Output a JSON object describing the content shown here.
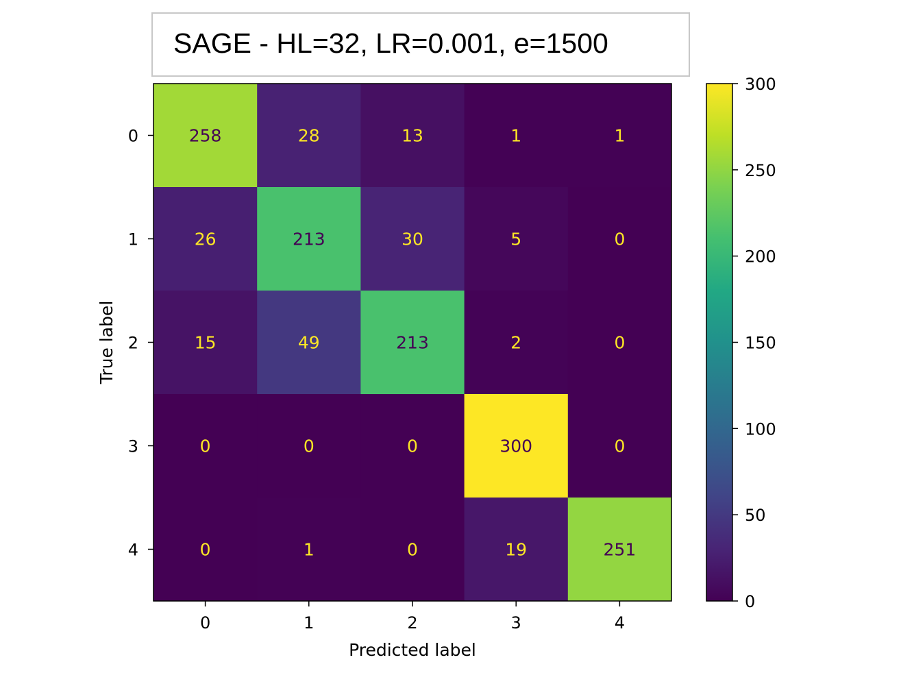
{
  "title": "SAGE - HL=32, LR=0.001, e=1500",
  "chart_data": {
    "type": "heatmap",
    "x_label": "Predicted label",
    "y_label": "True label",
    "x_ticks": [
      "0",
      "1",
      "2",
      "3",
      "4"
    ],
    "y_ticks": [
      "0",
      "1",
      "2",
      "3",
      "4"
    ],
    "matrix": [
      [
        258,
        28,
        13,
        1,
        1
      ],
      [
        26,
        213,
        30,
        5,
        0
      ],
      [
        15,
        49,
        213,
        2,
        0
      ],
      [
        0,
        0,
        0,
        300,
        0
      ],
      [
        0,
        1,
        0,
        19,
        251
      ]
    ],
    "colormap": "viridis",
    "color_range": [
      0,
      300
    ],
    "colorbar_ticks": [
      0,
      50,
      100,
      150,
      200,
      250,
      300
    ],
    "text_color_dark_cells": "#fde725",
    "text_color_light_cells": "#440154"
  }
}
